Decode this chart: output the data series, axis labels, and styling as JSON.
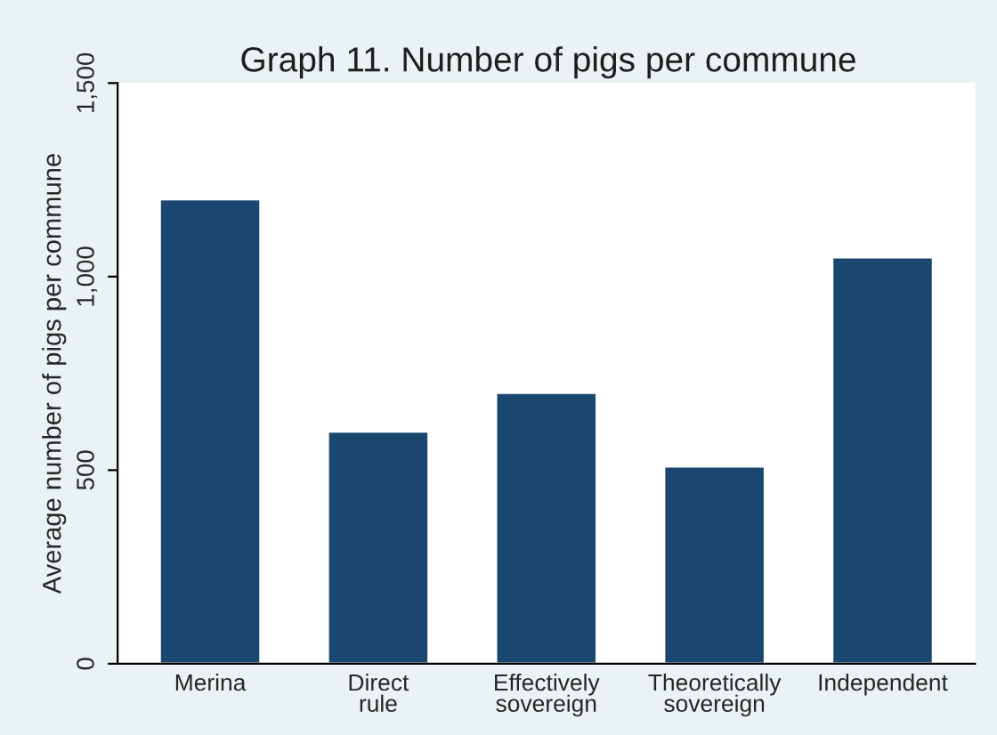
{
  "chart_data": {
    "type": "bar",
    "title": "Graph 11. Number of pigs per commune",
    "ylabel": "Average number of pigs per commune",
    "categories": [
      "Merina",
      "Direct\nrule",
      "Effectively\nsovereign",
      "Theoretically\nsovereign",
      "Independent"
    ],
    "values": [
      1200,
      600,
      700,
      510,
      1050
    ],
    "color": "#1a476f",
    "ylim": [
      0,
      1500
    ],
    "yticks": [
      0,
      500,
      {
        "value": 1000,
        "label": "1,000"
      },
      {
        "value": 1500,
        "label": "1,500"
      }
    ],
    "grid": false
  }
}
